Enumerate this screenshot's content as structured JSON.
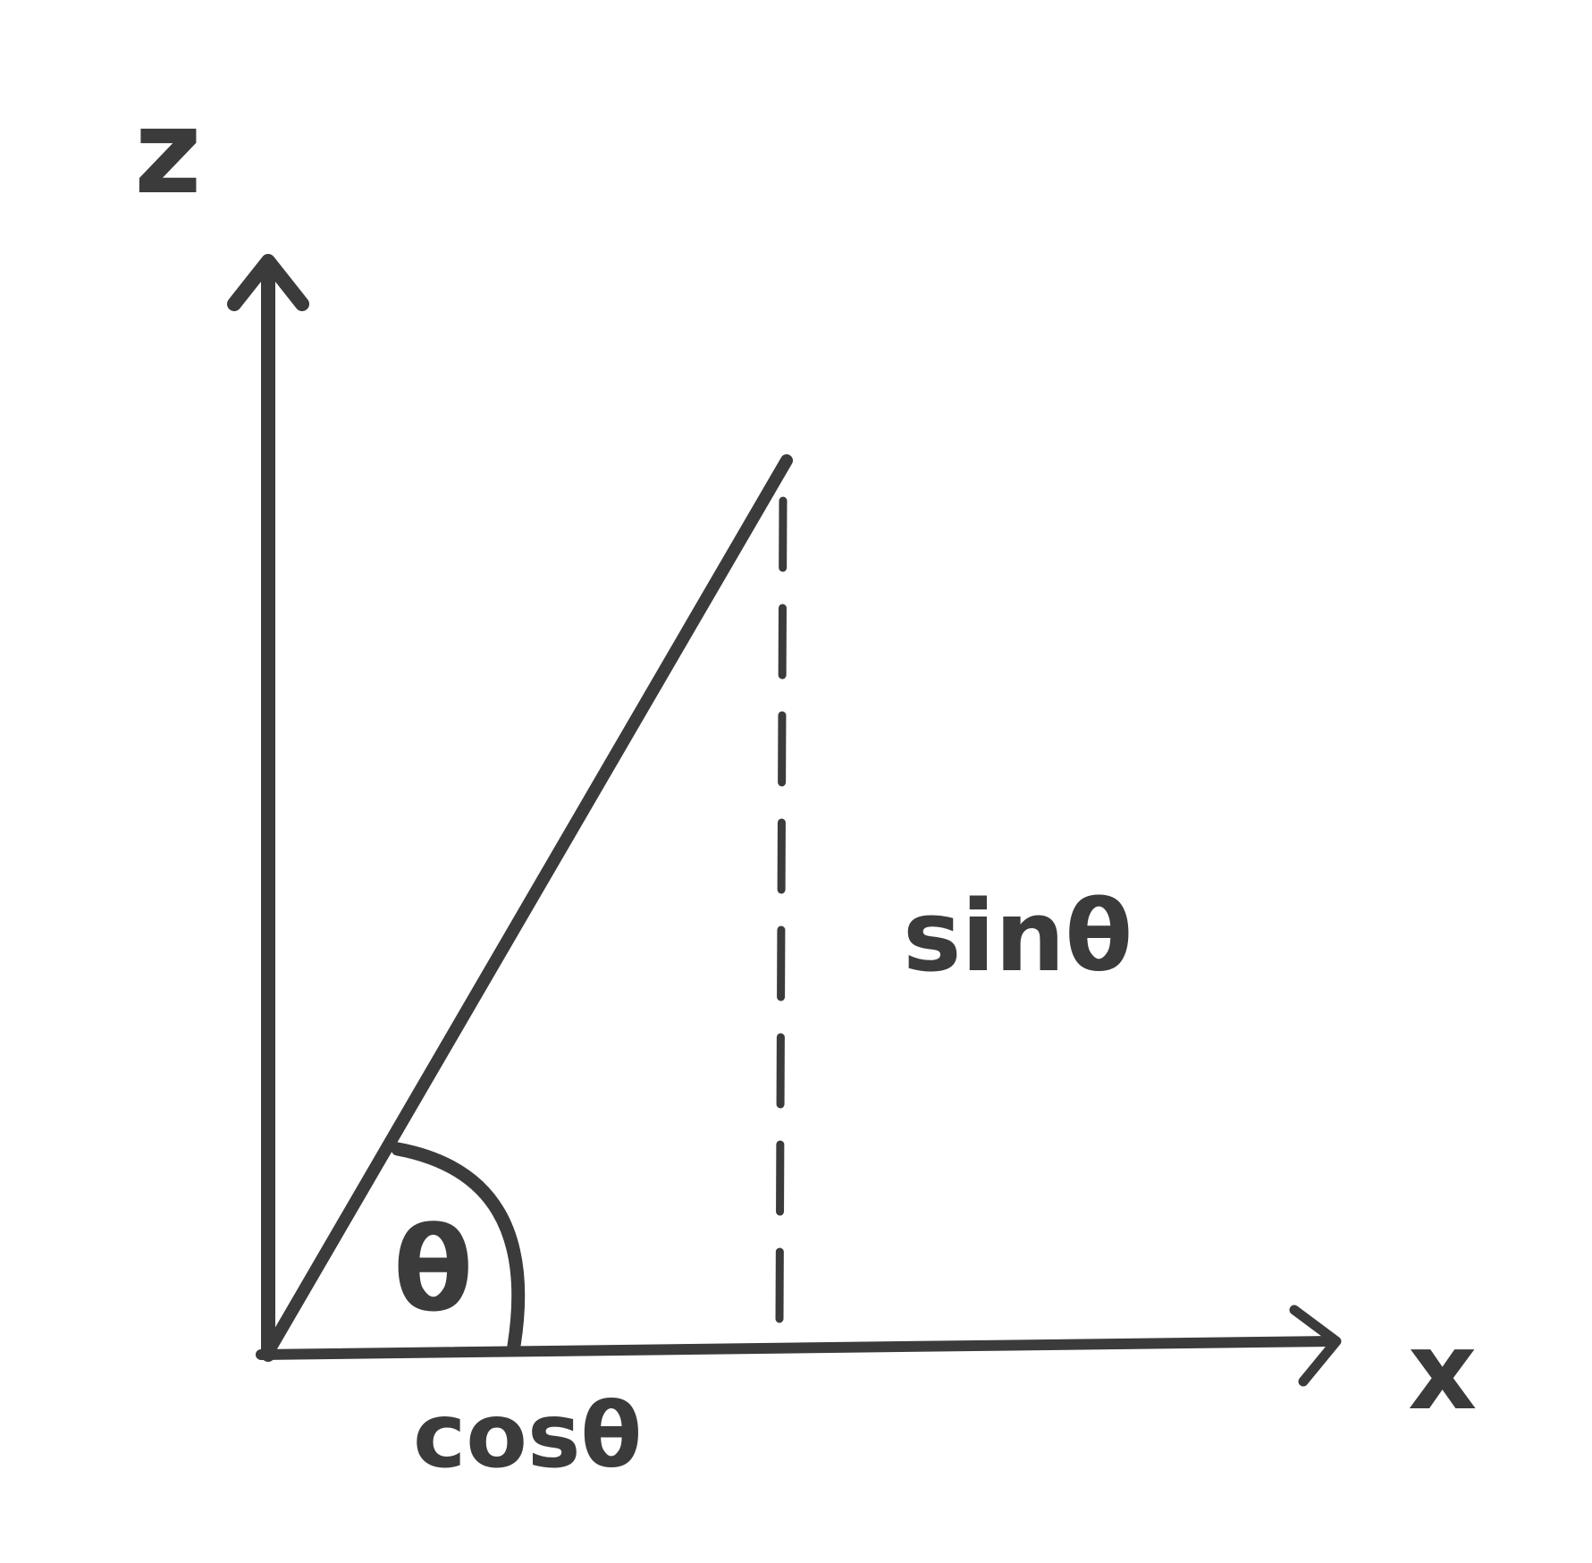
{
  "labels": {
    "z_axis": "z",
    "x_axis": "x",
    "angle": "θ",
    "vertical_component": "sinθ",
    "horizontal_component": "cosθ"
  },
  "colors": {
    "ink": "#3b3b3b",
    "background": "#ffffff"
  }
}
